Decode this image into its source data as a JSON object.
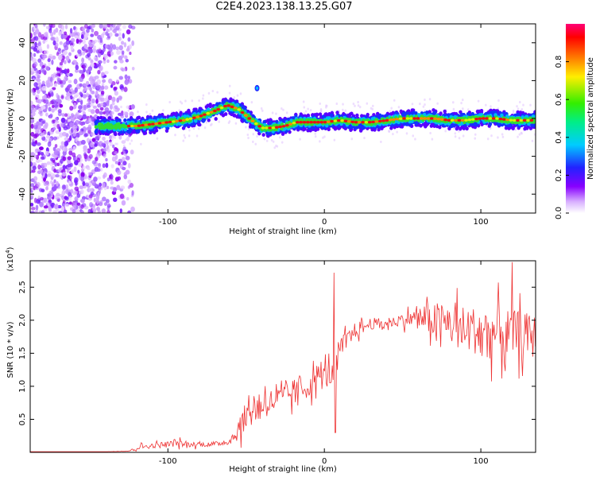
{
  "title": "C2E4.2023.138.13.25.G07",
  "colors": {
    "snr_line": "#ee3333",
    "frame": "#000000"
  },
  "chart_data": [
    {
      "type": "heatmap",
      "xlabel": "Height of straight line (km)",
      "ylabel": "Frequency (Hz)",
      "xlim": [
        -188,
        135
      ],
      "ylim": [
        -50,
        50
      ],
      "xticks": [
        -100,
        0,
        100
      ],
      "yticks": [
        -40,
        -20,
        0,
        20,
        40
      ],
      "colorbar": {
        "label": "Normalized spectral amplitude",
        "range": [
          0.0,
          1.0
        ],
        "ticks": [
          0.0,
          0.2,
          0.4,
          0.6,
          0.8
        ],
        "colormap": "rainbow (white-violet-blue-cyan-green-yellow-red-magenta)"
      },
      "ridge": {
        "x": [
          -143,
          -130,
          -120,
          -110,
          -100,
          -90,
          -80,
          -70,
          -62,
          -55,
          -48,
          -40,
          -33,
          -25,
          -18,
          -10,
          0,
          10,
          20,
          30,
          40,
          50,
          60,
          70,
          80,
          90,
          100,
          110,
          120,
          133
        ],
        "y": [
          -4,
          -4,
          -4,
          -3,
          -2,
          -1,
          1,
          4,
          7,
          5,
          0,
          -5,
          -5,
          -4,
          -2,
          -2,
          -2,
          -1,
          -2,
          -2,
          -1,
          0,
          0,
          0,
          -1,
          -1,
          0,
          0,
          -1,
          -1
        ]
      },
      "noise_region": [
        -188,
        -122
      ]
    },
    {
      "type": "line",
      "xlabel": "Height of straight line (km)",
      "ylabel": "SNR (10 * v/v)",
      "multiplier": "(x10",
      "multiplier_exp": "4",
      "multiplier_close": ")",
      "xlim": [
        -188,
        135
      ],
      "ylim": [
        0,
        2.9
      ],
      "xticks": [
        -100,
        0,
        100
      ],
      "yticks": [
        0.5,
        1.0,
        1.5,
        2.0,
        2.5
      ],
      "series": [
        {
          "x": [
            -188,
            -160,
            -140,
            -125,
            -118,
            -110,
            -100,
            -95,
            -90,
            -80,
            -70,
            -60,
            -55,
            -50,
            -45,
            -40,
            -35,
            -30,
            -25,
            -20,
            -15,
            -10,
            -5,
            0,
            5,
            8,
            10,
            15,
            20,
            25,
            30,
            40,
            50,
            60,
            70,
            80,
            90,
            100,
            110,
            120,
            135
          ],
          "values": [
            0.01,
            0.01,
            0.01,
            0.02,
            0.08,
            0.1,
            0.12,
            0.15,
            0.12,
            0.12,
            0.12,
            0.18,
            0.35,
            0.55,
            0.65,
            0.75,
            0.75,
            0.8,
            0.85,
            0.9,
            0.95,
            1.0,
            1.15,
            1.15,
            1.2,
            1.3,
            1.55,
            1.7,
            1.85,
            1.9,
            1.95,
            1.95,
            2.0,
            2.05,
            2.0,
            1.95,
            1.85,
            1.85,
            1.8,
            1.8,
            1.75
          ],
          "spread": [
            0,
            0,
            0,
            0.01,
            0.06,
            0.06,
            0.08,
            0.1,
            0.07,
            0.06,
            0.06,
            0.1,
            0.28,
            0.35,
            0.4,
            0.38,
            0.35,
            0.3,
            0.32,
            0.35,
            0.3,
            0.3,
            0.3,
            0.35,
            0.3,
            0.35,
            0.3,
            0.25,
            0.2,
            0.18,
            0.15,
            0.12,
            0.15,
            0.25,
            0.45,
            0.55,
            0.6,
            0.6,
            0.65,
            0.6,
            0.55
          ],
          "spikes": [
            {
              "x": 6,
              "y": 2.72
            },
            {
              "x": 7,
              "y": 0.3
            },
            {
              "x": 120,
              "y": 2.88
            }
          ]
        }
      ]
    }
  ]
}
